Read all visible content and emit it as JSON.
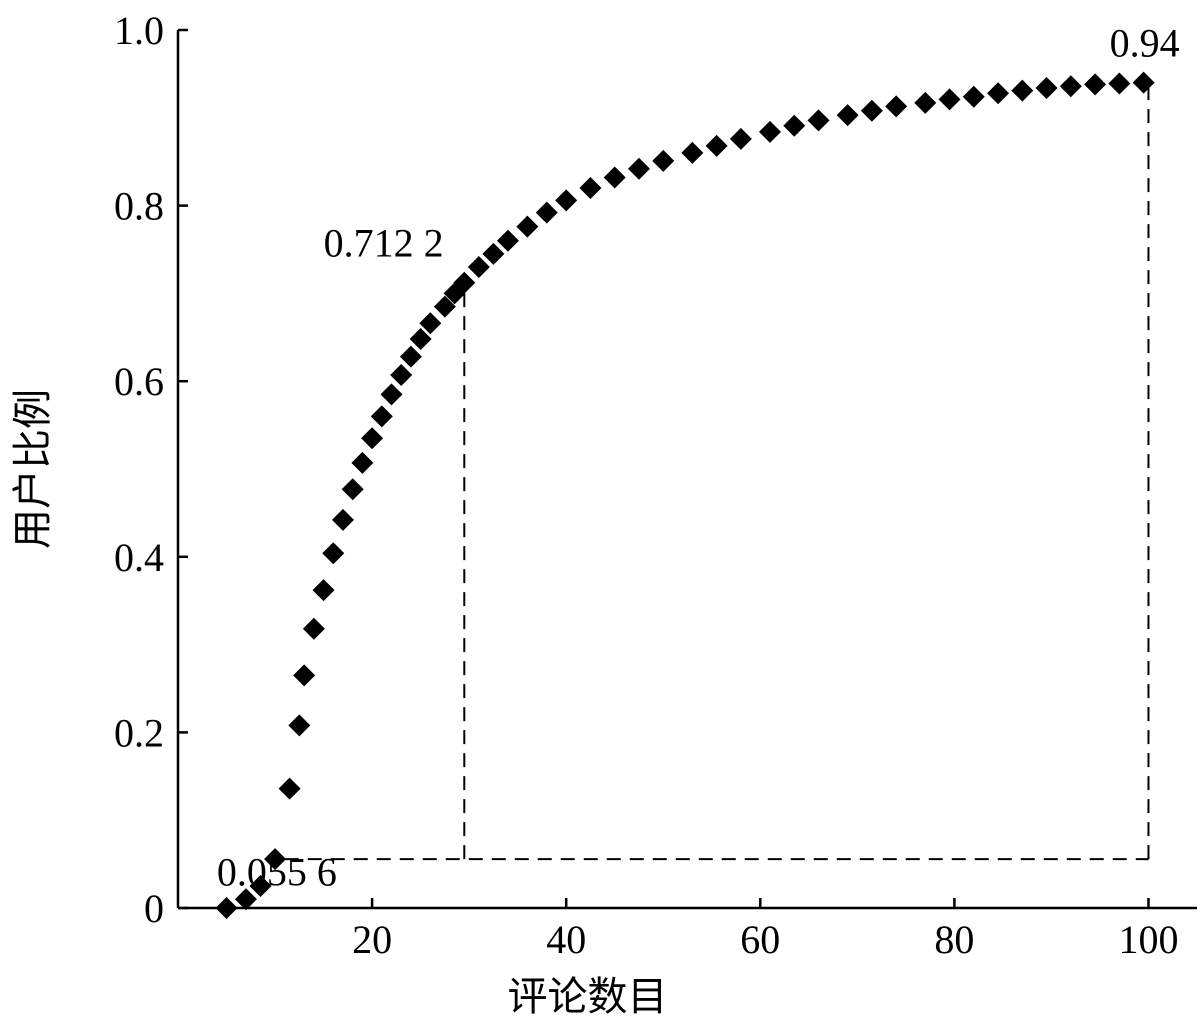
{
  "chart_data": {
    "type": "scatter",
    "xlabel": "评论数目",
    "ylabel": "用户比例",
    "xlim": [
      0,
      105
    ],
    "ylim": [
      0,
      1.0
    ],
    "xticks": [
      {
        "value": 20,
        "label": "20"
      },
      {
        "value": 40,
        "label": "40"
      },
      {
        "value": 60,
        "label": "60"
      },
      {
        "value": 80,
        "label": "80"
      },
      {
        "value": 100,
        "label": "100"
      }
    ],
    "yticks": [
      {
        "value": 0,
        "label": "0"
      },
      {
        "value": 0.2,
        "label": "0.2"
      },
      {
        "value": 0.4,
        "label": "0.4"
      },
      {
        "value": 0.6,
        "label": "0.6"
      },
      {
        "value": 0.8,
        "label": "0.8"
      },
      {
        "value": 1.0,
        "label": "1.0"
      }
    ],
    "grid": false,
    "marker": "diamond",
    "series": [
      {
        "points": [
          [
            5,
            0.0
          ],
          [
            7,
            0.01
          ],
          [
            8.5,
            0.025
          ],
          [
            10,
            0.0556
          ],
          [
            11.5,
            0.136
          ],
          [
            12.5,
            0.208
          ],
          [
            13,
            0.265
          ],
          [
            14,
            0.318
          ],
          [
            15,
            0.362
          ],
          [
            16,
            0.404
          ],
          [
            17,
            0.442
          ],
          [
            18,
            0.477
          ],
          [
            19,
            0.507
          ],
          [
            20,
            0.535
          ],
          [
            21,
            0.56
          ],
          [
            22,
            0.585
          ],
          [
            23,
            0.607
          ],
          [
            24,
            0.628
          ],
          [
            25,
            0.648
          ],
          [
            26,
            0.666
          ],
          [
            27.5,
            0.685
          ],
          [
            28.5,
            0.7
          ],
          [
            29.5,
            0.7122
          ],
          [
            31,
            0.73
          ],
          [
            32.5,
            0.745
          ],
          [
            34,
            0.76
          ],
          [
            36,
            0.776
          ],
          [
            38,
            0.792
          ],
          [
            40,
            0.806
          ],
          [
            42.5,
            0.82
          ],
          [
            45,
            0.832
          ],
          [
            47.5,
            0.842
          ],
          [
            50,
            0.851
          ],
          [
            53,
            0.86
          ],
          [
            55.5,
            0.868
          ],
          [
            58,
            0.876
          ],
          [
            61,
            0.884
          ],
          [
            63.5,
            0.891
          ],
          [
            66,
            0.897
          ],
          [
            69,
            0.903
          ],
          [
            71.5,
            0.908
          ],
          [
            74,
            0.913
          ],
          [
            77,
            0.917
          ],
          [
            79.5,
            0.921
          ],
          [
            82,
            0.924
          ],
          [
            84.5,
            0.928
          ],
          [
            87,
            0.931
          ],
          [
            89.5,
            0.934
          ],
          [
            92,
            0.936
          ],
          [
            94.5,
            0.938
          ],
          [
            97,
            0.939
          ],
          [
            99.5,
            0.94
          ]
        ]
      }
    ],
    "reference_lines": [
      {
        "kind": "horizontal",
        "y": 0.0556,
        "x_from": 11,
        "x_to": 100
      },
      {
        "kind": "vertical",
        "x": 29.5,
        "y_from": 0.0556,
        "y_to": 0.7122
      },
      {
        "kind": "vertical",
        "x": 100,
        "y_from": 0.0556,
        "y_to": 0.94
      }
    ],
    "annotations": [
      {
        "text": "0.055 6",
        "x": 4,
        "y": 0.0556,
        "anchor": "start",
        "dy": -0.03
      },
      {
        "text": "0.712 2",
        "x": 15,
        "y": 0.7122,
        "anchor": "start",
        "dy": 0.03
      },
      {
        "text": "0.94",
        "x": 96,
        "y": 0.94,
        "anchor": "start",
        "dy": 0.03
      }
    ]
  }
}
